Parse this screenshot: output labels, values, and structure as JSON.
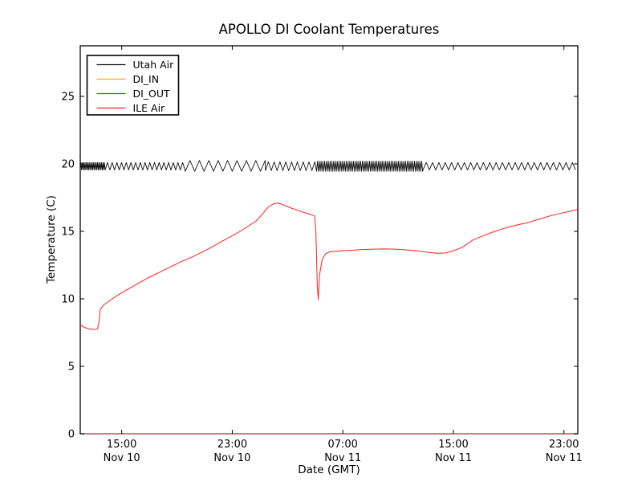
{
  "chart_data": {
    "type": "line",
    "title": "APOLLO DI Coolant Temperatures",
    "xlabel": "Date (GMT)",
    "ylabel": "Temperature (C)",
    "grid": false,
    "legend_position": "upper left",
    "x_axis": {
      "unit": "hours after Nov 10 12:00 GMT",
      "range_hours": [
        0,
        36
      ],
      "ticks": [
        {
          "hour": 3,
          "time": "15:00",
          "date": "Nov 10"
        },
        {
          "hour": 11,
          "time": "23:00",
          "date": "Nov 10"
        },
        {
          "hour": 19,
          "time": "07:00",
          "date": "Nov 11"
        },
        {
          "hour": 27,
          "time": "15:00",
          "date": "Nov 11"
        },
        {
          "hour": 35,
          "time": "23:00",
          "date": "Nov 11"
        }
      ]
    },
    "y_axis": {
      "range": [
        0,
        28.75
      ],
      "ticks": [
        0,
        5,
        10,
        15,
        20,
        25
      ]
    },
    "series": [
      {
        "name": "Utah Air",
        "color": "#111111",
        "style": "oscillating",
        "mean_c": 19.8,
        "segments": [
          {
            "from_h": 0,
            "to_h": 1.8,
            "period_h": 0.1,
            "min_c": 19.55,
            "max_c": 20.1
          },
          {
            "from_h": 1.8,
            "to_h": 7.6,
            "period_h": 0.34,
            "min_c": 19.55,
            "max_c": 20.1
          },
          {
            "from_h": 7.6,
            "to_h": 13.4,
            "period_h": 0.68,
            "min_c": 19.45,
            "max_c": 20.25
          },
          {
            "from_h": 13.4,
            "to_h": 17.1,
            "period_h": 0.42,
            "min_c": 19.5,
            "max_c": 20.15
          },
          {
            "from_h": 17.1,
            "to_h": 24.8,
            "period_h": 0.13,
            "min_c": 19.45,
            "max_c": 20.2
          },
          {
            "from_h": 24.8,
            "to_h": 36.0,
            "period_h": 0.46,
            "min_c": 19.55,
            "max_c": 20.1
          }
        ]
      },
      {
        "name": "DI_IN",
        "color": "#ffa500",
        "style": "flat",
        "value_c": 0,
        "from_h": 0,
        "to_h": 36
      },
      {
        "name": "DI_OUT",
        "color": "#9933a0",
        "style": "flat",
        "value_c": 0,
        "from_h": 0,
        "to_h": 36,
        "opacity": 0.6
      },
      {
        "name": "ILE Air",
        "color": "#ff1f1f",
        "style": "points",
        "points": [
          [
            0,
            8.1
          ],
          [
            0.25,
            7.9
          ],
          [
            0.6,
            7.78
          ],
          [
            1.0,
            7.72
          ],
          [
            1.25,
            7.78
          ],
          [
            1.35,
            8.3
          ],
          [
            1.45,
            9.2
          ],
          [
            1.65,
            9.5
          ],
          [
            2.1,
            9.85
          ],
          [
            2.6,
            10.2
          ],
          [
            3.0,
            10.45
          ],
          [
            3.5,
            10.75
          ],
          [
            4.2,
            11.15
          ],
          [
            5.0,
            11.6
          ],
          [
            5.8,
            12.0
          ],
          [
            6.6,
            12.4
          ],
          [
            7.4,
            12.8
          ],
          [
            8.2,
            13.15
          ],
          [
            9.0,
            13.55
          ],
          [
            9.8,
            14.0
          ],
          [
            10.6,
            14.45
          ],
          [
            11.4,
            14.9
          ],
          [
            12.1,
            15.35
          ],
          [
            12.7,
            15.75
          ],
          [
            13.2,
            16.3
          ],
          [
            13.6,
            16.8
          ],
          [
            14.0,
            17.05
          ],
          [
            14.3,
            17.1
          ],
          [
            14.6,
            17.0
          ],
          [
            15.2,
            16.75
          ],
          [
            15.9,
            16.5
          ],
          [
            16.5,
            16.3
          ],
          [
            16.95,
            16.15
          ],
          [
            17.05,
            15.0
          ],
          [
            17.15,
            11.0
          ],
          [
            17.22,
            9.95
          ],
          [
            17.32,
            11.8
          ],
          [
            17.5,
            12.9
          ],
          [
            17.75,
            13.35
          ],
          [
            18.1,
            13.5
          ],
          [
            18.8,
            13.55
          ],
          [
            19.6,
            13.6
          ],
          [
            20.4,
            13.65
          ],
          [
            21.2,
            13.68
          ],
          [
            22.0,
            13.7
          ],
          [
            22.8,
            13.68
          ],
          [
            23.6,
            13.62
          ],
          [
            24.4,
            13.55
          ],
          [
            25.1,
            13.45
          ],
          [
            25.8,
            13.38
          ],
          [
            26.4,
            13.4
          ],
          [
            27.0,
            13.55
          ],
          [
            27.7,
            13.85
          ],
          [
            28.4,
            14.35
          ],
          [
            29.2,
            14.7
          ],
          [
            30.0,
            15.0
          ],
          [
            30.9,
            15.3
          ],
          [
            31.7,
            15.5
          ],
          [
            32.4,
            15.65
          ],
          [
            33.2,
            15.9
          ],
          [
            34.0,
            16.15
          ],
          [
            34.8,
            16.35
          ],
          [
            35.5,
            16.5
          ],
          [
            35.95,
            16.62
          ]
        ]
      }
    ],
    "legend": {
      "entries": [
        "Utah Air",
        "DI_IN",
        "DI_OUT",
        "ILE Air"
      ],
      "border_color": "#000000",
      "background": "#ffffff"
    },
    "axis_color": "#000000"
  }
}
